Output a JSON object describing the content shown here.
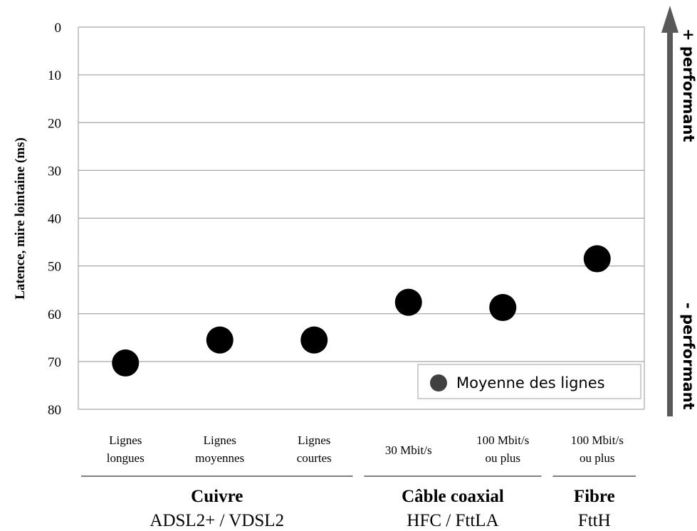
{
  "chart_data": {
    "type": "scatter",
    "ylabel": "Latence, mire lointaine (ms)",
    "ylim": [
      0,
      80
    ],
    "y_inverted": true,
    "yticks": [
      "0",
      "10",
      "20",
      "30",
      "40",
      "50",
      "60",
      "70",
      "80"
    ],
    "categories": [
      [
        "Lignes",
        "longues"
      ],
      [
        "Lignes",
        "moyennes"
      ],
      [
        "Lignes",
        "courtes"
      ],
      [
        "30 Mbit/s"
      ],
      [
        "100 Mbit/s",
        "ou plus"
      ],
      [
        "100 Mbit/s",
        "ou plus"
      ]
    ],
    "series": [
      {
        "name": "Moyenne des lignes",
        "values": [
          70.3,
          65.5,
          65.5,
          57.6,
          58.7,
          48.5
        ]
      }
    ],
    "groups": [
      {
        "name": "Cuivre",
        "sub": "ADSL2+ / VDSL2",
        "start": 0,
        "end": 2
      },
      {
        "name": "Câble coaxial",
        "sub": "HFC / FttLA",
        "start": 3,
        "end": 4
      },
      {
        "name": "Fibre",
        "sub": "FttH",
        "start": 5,
        "end": 5
      }
    ],
    "legend": {
      "label": "Moyenne des lignes",
      "position": "bottom-right"
    },
    "annotations": {
      "top": "+ performant",
      "bottom": "- performant"
    },
    "grid": true,
    "colors": {
      "marker": "#000000",
      "legend_marker": "#404040",
      "grid": "#a6a6a6",
      "arrow": "#595959"
    }
  }
}
